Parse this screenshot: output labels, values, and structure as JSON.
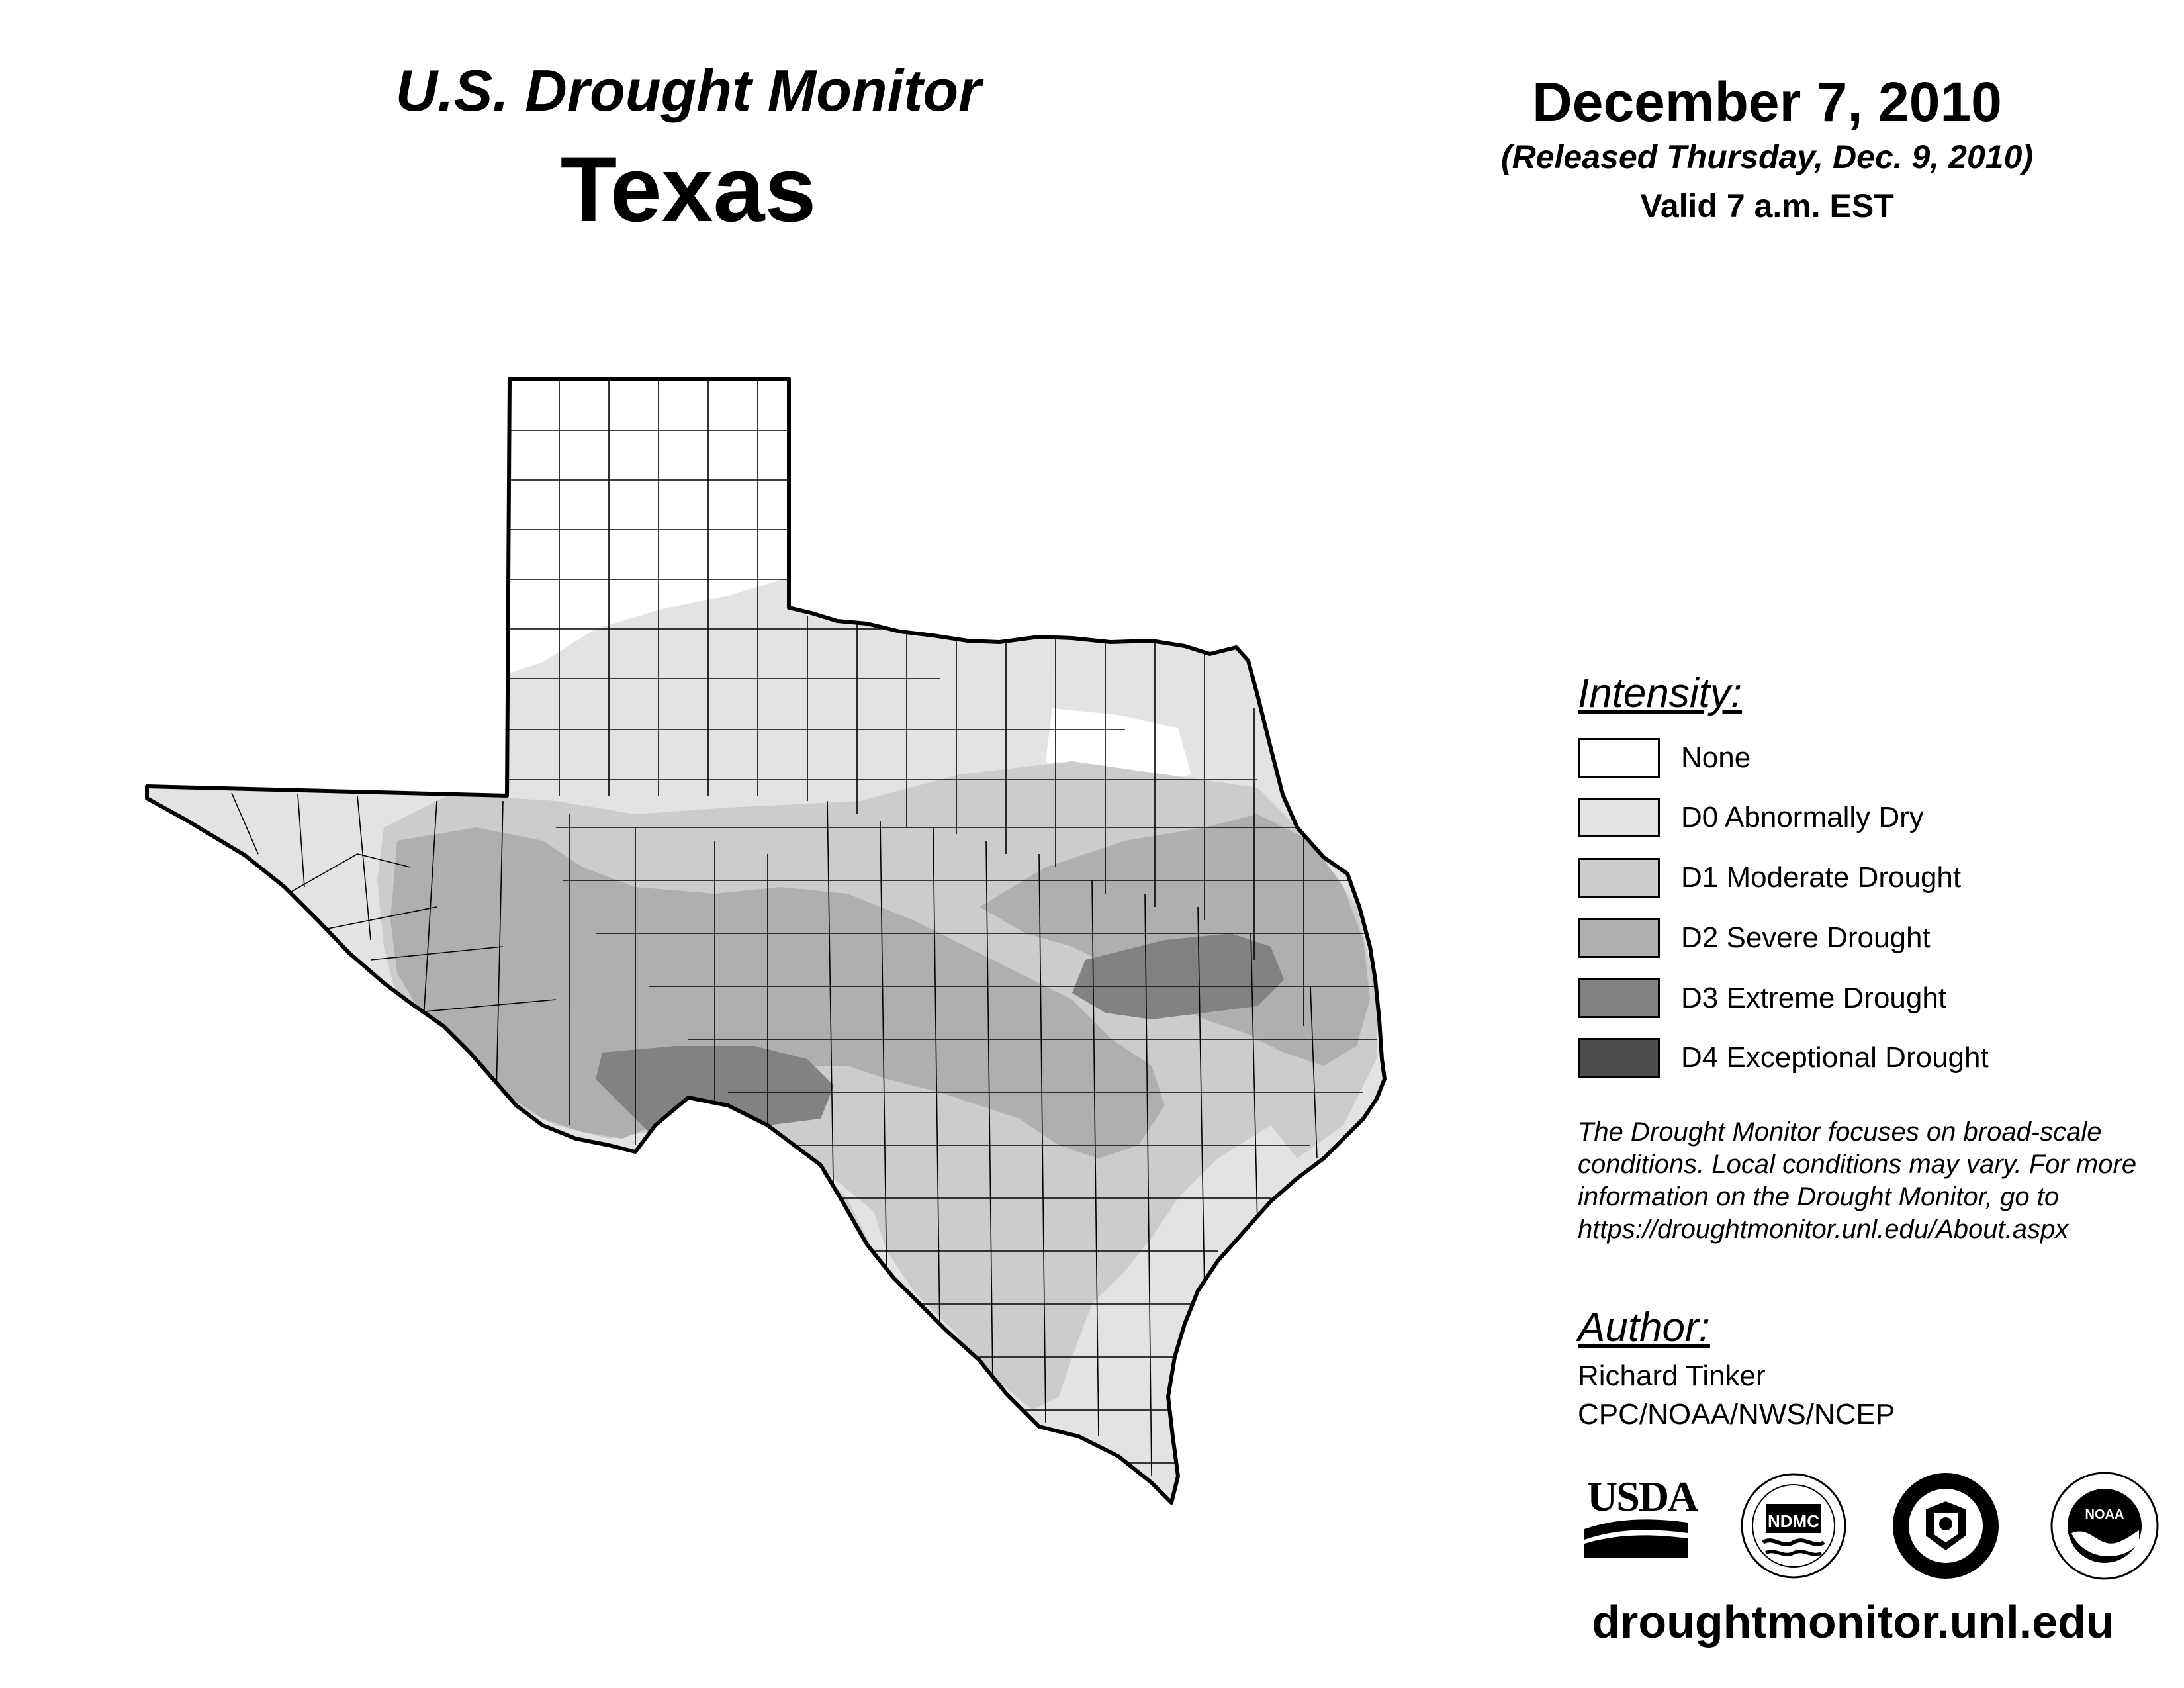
{
  "header": {
    "product": "U.S. Drought Monitor",
    "region": "Texas",
    "date": "December 7, 2010",
    "released": "(Released Thursday, Dec. 9, 2010)",
    "valid": "Valid 7 a.m. EST"
  },
  "legend": {
    "title": "Intensity:",
    "items": [
      {
        "label": "None",
        "color": "#ffffff"
      },
      {
        "label": "D0 Abnormally Dry",
        "color": "#e3e3e3"
      },
      {
        "label": "D1 Moderate Drought",
        "color": "#cccccc"
      },
      {
        "label": "D2 Severe Drought",
        "color": "#afafaf"
      },
      {
        "label": "D3 Extreme Drought",
        "color": "#828282"
      },
      {
        "label": "D4 Exceptional Drought",
        "color": "#4e4e4e"
      }
    ]
  },
  "note": "The Drought Monitor focuses on broad-scale conditions. Local conditions may vary. For more information on the Drought Monitor, go to https://droughtmonitor.unl.edu/About.aspx",
  "author": {
    "title": "Author:",
    "name": "Richard Tinker",
    "org": "CPC/NOAA/NWS/NCEP"
  },
  "logos": {
    "usda": "USDA",
    "ndmc": "NDMC",
    "noaa": "NOAA"
  },
  "website": "droughtmonitor.unl.edu"
}
